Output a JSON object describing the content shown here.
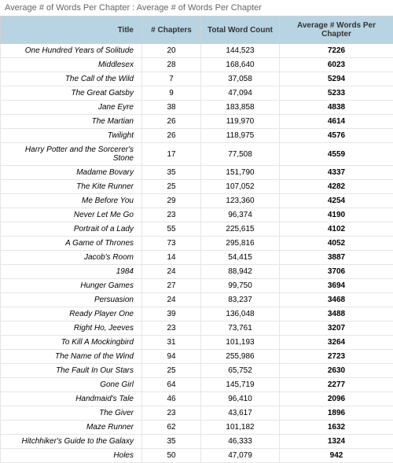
{
  "heading": "Average # of Words Per Chapter : Average # of Words Per Chapter",
  "columns": [
    "Title",
    "# Chapters",
    "Total Word Count",
    "Average # Words Per Chapter"
  ],
  "rows": [
    {
      "title": "One Hundred Years of Solitude",
      "chapters": "20",
      "total": "144,523",
      "avg": "7226"
    },
    {
      "title": "Middlesex",
      "chapters": "28",
      "total": "168,640",
      "avg": "6023"
    },
    {
      "title": "The Call of the Wild",
      "chapters": "7",
      "total": "37,058",
      "avg": "5294"
    },
    {
      "title": "The Great Gatsby",
      "chapters": "9",
      "total": "47,094",
      "avg": "5233"
    },
    {
      "title": "Jane Eyre",
      "chapters": "38",
      "total": "183,858",
      "avg": "4838"
    },
    {
      "title": "The Martian",
      "chapters": "26",
      "total": "119,970",
      "avg": "4614"
    },
    {
      "title": "Twilight",
      "chapters": "26",
      "total": "118,975",
      "avg": "4576"
    },
    {
      "title": "Harry Potter and the Sorcerer's Stone",
      "chapters": "17",
      "total": "77,508",
      "avg": "4559"
    },
    {
      "title": "Madame Bovary",
      "chapters": "35",
      "total": "151,790",
      "avg": "4337"
    },
    {
      "title": "The Kite Runner",
      "chapters": "25",
      "total": "107,052",
      "avg": "4282"
    },
    {
      "title": "Me Before You",
      "chapters": "29",
      "total": "123,360",
      "avg": "4254"
    },
    {
      "title": "Never Let Me Go",
      "chapters": "23",
      "total": "96,374",
      "avg": "4190"
    },
    {
      "title": "Portrait of a Lady",
      "chapters": "55",
      "total": "225,615",
      "avg": "4102"
    },
    {
      "title": "A Game of Thrones",
      "chapters": "73",
      "total": "295,816",
      "avg": "4052"
    },
    {
      "title": "Jacob's Room",
      "chapters": "14",
      "total": "54,415",
      "avg": "3887"
    },
    {
      "title": "1984",
      "chapters": "24",
      "total": "88,942",
      "avg": "3706"
    },
    {
      "title": "Hunger Games",
      "chapters": "27",
      "total": "99,750",
      "avg": "3694"
    },
    {
      "title": "Persuasion",
      "chapters": "24",
      "total": "83,237",
      "avg": "3468"
    },
    {
      "title": "Ready Player One",
      "chapters": "39",
      "total": "136,048",
      "avg": "3488"
    },
    {
      "title": "Right Ho, Jeeves",
      "chapters": "23",
      "total": "73,761",
      "avg": "3207"
    },
    {
      "title": "To Kill A Mockingbird",
      "chapters": "31",
      "total": "101,193",
      "avg": "3264"
    },
    {
      "title": "The Name of the Wind",
      "chapters": "94",
      "total": "255,986",
      "avg": "2723"
    },
    {
      "title": "The Fault In Our Stars",
      "chapters": "25",
      "total": "65,752",
      "avg": "2630"
    },
    {
      "title": "Gone Girl",
      "chapters": "64",
      "total": "145,719",
      "avg": "2277"
    },
    {
      "title": "Handmaid's Tale",
      "chapters": "46",
      "total": "96,410",
      "avg": "2096"
    },
    {
      "title": "The Giver",
      "chapters": "23",
      "total": "43,617",
      "avg": "1896"
    },
    {
      "title": "Maze Runner",
      "chapters": "62",
      "total": "101,182",
      "avg": "1632"
    },
    {
      "title": "Hitchhiker's Guide to the Galaxy",
      "chapters": "35",
      "total": "46,333",
      "avg": "1324"
    },
    {
      "title": "Holes",
      "chapters": "50",
      "total": "47,079",
      "avg": "942"
    }
  ]
}
